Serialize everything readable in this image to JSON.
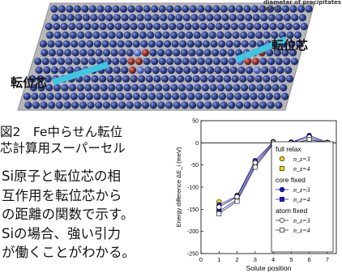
{
  "figure": {
    "top_caption": "diameter of precipitates (nm)",
    "dislocation_label_right": "転位芯",
    "dislocation_label_left": "転位芯",
    "caption_line1": "図2　Fe中らせん転位",
    "caption_line2": "芯計算用スーパーセル",
    "description": [
      "Si原子と転位芯の相",
      "互作用を転位芯から",
      "の距離の関数で示す。",
      "Siの場合、強い引力",
      "が働くことがわかる。"
    ]
  },
  "colors": {
    "atom_blue": "#2d3f8c",
    "atom_blue_highlight": "#7e8fdc",
    "atom_red": "#8e3030",
    "atom_red_highlight": "#d97b6a",
    "atom_light_blue": "#5b78d8",
    "plane": "#b9b9b9",
    "arrow": "#3fc6e0",
    "series_yellow": "#f5dd00",
    "series_blue": "#1a1ad8"
  },
  "chart_data": {
    "type": "line",
    "xlabel": "Solute position",
    "ylabel": "Energy difference ΔE_i (meV)",
    "xlim": [
      0,
      7.5
    ],
    "ylim": [
      -250,
      50
    ],
    "xticks": [
      0,
      1,
      2,
      3,
      4,
      5,
      6,
      7
    ],
    "yticks": [
      -250,
      -200,
      -150,
      -100,
      -50,
      0,
      50
    ],
    "grid": false,
    "legend": [
      {
        "heading": "full relax",
        "items": [
          "n_z=3",
          "n_z=4"
        ]
      },
      {
        "heading": "core fixed",
        "items": [
          "n_z=3",
          "n_z=4"
        ]
      },
      {
        "heading": "atom fixed",
        "items": [
          "n_z=3",
          "n_z=4"
        ]
      }
    ],
    "legend_placement": "right",
    "series": [
      {
        "name": "full relax n_z=3",
        "marker": "circle",
        "fill": "#f5dd00",
        "x": [
          1,
          2,
          3,
          4,
          5,
          6,
          7
        ],
        "y": [
          -133,
          -118,
          -42,
          3,
          2,
          14,
          1
        ]
      },
      {
        "name": "full relax n_z=4",
        "marker": "square",
        "fill": "#f5dd00",
        "x": [
          1,
          2,
          3,
          4,
          5,
          6,
          7
        ],
        "y": [
          -150,
          -125,
          -48,
          0,
          -1,
          9,
          0
        ]
      },
      {
        "name": "core fixed n_z=3",
        "marker": "circle",
        "fill": "#1a1ad8",
        "x": [
          1,
          2,
          3,
          4,
          5,
          6,
          7
        ],
        "y": [
          -140,
          -120,
          -40,
          2,
          1,
          17,
          1
        ]
      },
      {
        "name": "core fixed n_z=4",
        "marker": "square",
        "fill": "#1a1ad8",
        "x": [
          1,
          2,
          3,
          4,
          5,
          6,
          7
        ],
        "y": [
          -155,
          -128,
          -50,
          -2,
          -2,
          7,
          0
        ]
      },
      {
        "name": "atom fixed n_z=3",
        "marker": "circle",
        "fill": "#ffffff",
        "x": [
          1,
          2,
          3,
          4,
          5,
          6,
          7
        ],
        "y": [
          -145,
          -122,
          -45,
          1,
          0,
          13,
          0
        ]
      },
      {
        "name": "atom fixed n_z=4",
        "marker": "square",
        "fill": "#ffffff",
        "x": [
          1,
          2,
          3,
          4,
          5,
          6,
          7
        ],
        "y": [
          -160,
          -132,
          -55,
          -3,
          -3,
          8,
          0
        ]
      }
    ]
  }
}
